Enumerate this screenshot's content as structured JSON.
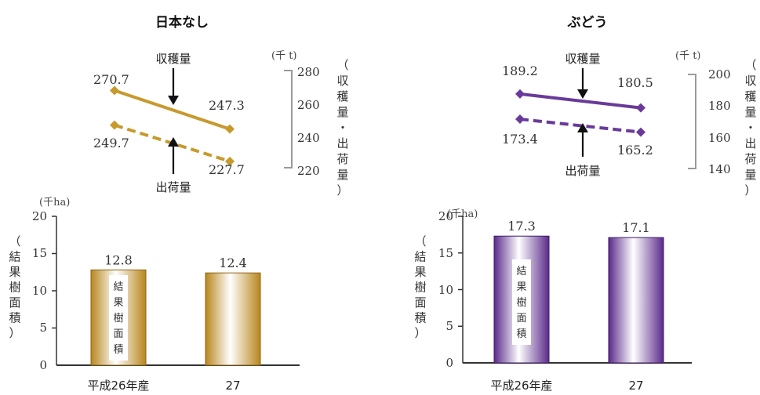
{
  "charts": [
    {
      "id": "nashi",
      "title": "日本なし",
      "line": {
        "unit": "(千 t)",
        "axis_label_chars": [
          "（",
          "収",
          "穫",
          "量",
          "・",
          "出",
          "荷",
          "量",
          "）"
        ],
        "ticks": [
          "280",
          "260",
          "240",
          "220"
        ],
        "harvest": {
          "name": "収穫量",
          "labels": [
            "270.7",
            "247.3"
          ]
        },
        "shipment": {
          "name": "出荷量",
          "labels": [
            "249.7",
            "227.7"
          ]
        }
      },
      "bar": {
        "unit": "(千ha)",
        "axis_label_chars": [
          "（",
          "結",
          "果",
          "樹",
          "面",
          "積",
          "）"
        ],
        "ticks": [
          "20",
          "15",
          "10",
          "5",
          "0"
        ],
        "categories": [
          "平成26年産",
          "27"
        ],
        "value_labels": [
          "12.8",
          "12.4"
        ],
        "inner_label_chars": [
          "結",
          "果",
          "樹",
          "面",
          "積"
        ]
      },
      "color": "#c79a2e"
    },
    {
      "id": "budou",
      "title": "ぶどう",
      "line": {
        "unit": "(千 t)",
        "axis_label_chars": [
          "（",
          "収",
          "穫",
          "量",
          "・",
          "出",
          "荷",
          "量",
          "）"
        ],
        "ticks": [
          "200",
          "180",
          "160",
          "140"
        ],
        "harvest": {
          "name": "収穫量",
          "labels": [
            "189.2",
            "180.5"
          ]
        },
        "shipment": {
          "name": "出荷量",
          "labels": [
            "173.4",
            "165.2"
          ]
        }
      },
      "bar": {
        "unit": "(千ha)",
        "axis_label_chars": [
          "（",
          "結",
          "果",
          "樹",
          "面",
          "積",
          "）"
        ],
        "ticks": [
          "20",
          "15",
          "10",
          "5",
          "0"
        ],
        "categories": [
          "平成26年産",
          "27"
        ],
        "value_labels": [
          "17.3",
          "17.1"
        ],
        "inner_label_chars": [
          "結",
          "果",
          "樹",
          "面",
          "積"
        ]
      },
      "color": "#6a3a9a"
    }
  ],
  "chart_data": [
    {
      "type": "line",
      "title": "日本なし",
      "categories": [
        "平成26年産",
        "27"
      ],
      "series": [
        {
          "name": "収穫量",
          "values": [
            270.7,
            247.3
          ]
        },
        {
          "name": "出荷量",
          "values": [
            249.7,
            227.7
          ]
        }
      ],
      "ylabel": "（収穫量・出荷量）",
      "yunit": "千 t",
      "ylim": [
        220,
        280
      ]
    },
    {
      "type": "bar",
      "title": "日本なし",
      "categories": [
        "平成26年産",
        "27"
      ],
      "values": [
        12.8,
        12.4
      ],
      "ylabel": "（結果樹面積）",
      "yunit": "千ha",
      "ylim": [
        0,
        20
      ]
    },
    {
      "type": "line",
      "title": "ぶどう",
      "categories": [
        "平成26年産",
        "27"
      ],
      "series": [
        {
          "name": "収穫量",
          "values": [
            189.2,
            180.5
          ]
        },
        {
          "name": "出荷量",
          "values": [
            173.4,
            165.2
          ]
        }
      ],
      "ylabel": "（収穫量・出荷量）",
      "yunit": "千 t",
      "ylim": [
        140,
        200
      ]
    },
    {
      "type": "bar",
      "title": "ぶどう",
      "categories": [
        "平成26年産",
        "27"
      ],
      "values": [
        17.3,
        17.1
      ],
      "ylabel": "（結果樹面積）",
      "yunit": "千ha",
      "ylim": [
        0,
        20
      ]
    }
  ]
}
